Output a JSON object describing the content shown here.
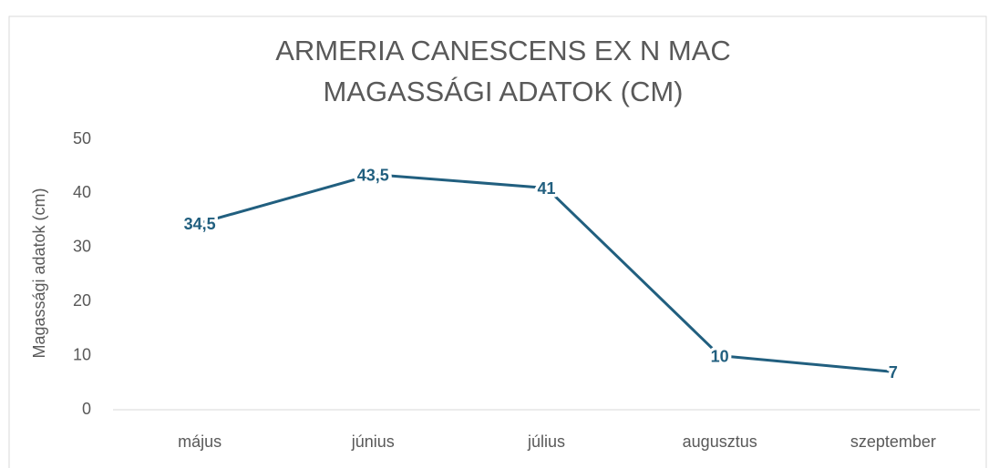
{
  "chart_data": {
    "type": "line",
    "title": [
      "ARMERIA CANESCENS EX N MAC",
      "MAGASSÁGI ADATOK (CM)"
    ],
    "y_label": "Magassági adatok (cm)",
    "categories": [
      "május",
      "június",
      "július",
      "augusztus",
      "szeptember"
    ],
    "series": [
      {
        "name": "Magassági adatok (cm)",
        "color": "#215f7f",
        "values": [
          34.5,
          43.5,
          41,
          10,
          7
        ],
        "value_labels": [
          "34,5",
          "43,5",
          "41",
          "10",
          "7"
        ]
      }
    ],
    "ylim": [
      0,
      50
    ],
    "yticks": [
      0,
      10,
      20,
      30,
      40,
      50
    ],
    "grid": false
  }
}
